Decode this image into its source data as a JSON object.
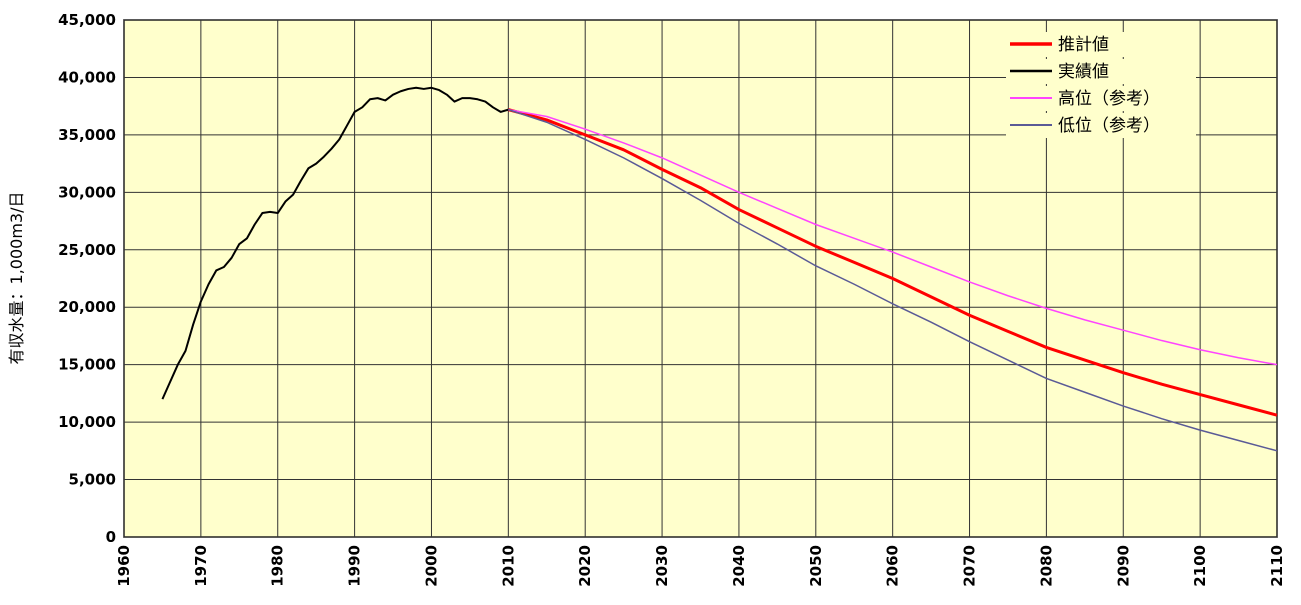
{
  "chart_data": {
    "type": "line",
    "ylabel": "有収水量：1,000m3/日",
    "xlim": [
      1960,
      2110
    ],
    "xticks": [
      1960,
      1970,
      1980,
      1990,
      2000,
      2010,
      2020,
      2030,
      2040,
      2050,
      2060,
      2070,
      2080,
      2090,
      2100,
      2110
    ],
    "ylim": [
      0,
      45000
    ],
    "yticks": [
      0,
      {
        "value": 5000,
        "label": "5,000"
      },
      {
        "value": 10000,
        "label": "10,000"
      },
      {
        "value": 15000,
        "label": "15,000"
      },
      {
        "value": 20000,
        "label": "20,000"
      },
      {
        "value": 25000,
        "label": "25,000"
      },
      {
        "value": 30000,
        "label": "30,000"
      },
      {
        "value": 35000,
        "label": "35,000"
      },
      {
        "value": 40000,
        "label": "40,000"
      },
      {
        "value": 45000,
        "label": "45,000"
      }
    ],
    "grid": true,
    "legend": "top-right",
    "background": "#ffffcc",
    "series": [
      {
        "name": "推計値",
        "color": "#ff0000",
        "width": 3,
        "x": [
          2010,
          2015,
          2020,
          2025,
          2030,
          2035,
          2040,
          2045,
          2050,
          2055,
          2060,
          2065,
          2070,
          2075,
          2080,
          2085,
          2090,
          2095,
          2100,
          2105,
          2110
        ],
        "values": [
          37200,
          36300,
          35000,
          33700,
          32000,
          30400,
          28500,
          26900,
          25300,
          23900,
          22500,
          20900,
          19300,
          17900,
          16500,
          15400,
          14300,
          13300,
          12400,
          11500,
          10600
        ]
      },
      {
        "name": "実績値",
        "color": "#000000",
        "width": 2,
        "x": [
          1965,
          1966,
          1967,
          1968,
          1969,
          1970,
          1971,
          1972,
          1973,
          1974,
          1975,
          1976,
          1977,
          1978,
          1979,
          1980,
          1981,
          1982,
          1983,
          1984,
          1985,
          1986,
          1987,
          1988,
          1989,
          1990,
          1991,
          1992,
          1993,
          1994,
          1995,
          1996,
          1997,
          1998,
          1999,
          2000,
          2001,
          2002,
          2003,
          2004,
          2005,
          2006,
          2007,
          2008,
          2009,
          2010
        ],
        "values": [
          12000,
          13500,
          15000,
          16200,
          18500,
          20500,
          22000,
          23200,
          23500,
          24300,
          25500,
          26000,
          27200,
          28200,
          28300,
          28200,
          29200,
          29800,
          31000,
          32100,
          32500,
          33100,
          33800,
          34600,
          35800,
          37000,
          37400,
          38100,
          38200,
          38000,
          38500,
          38800,
          39000,
          39100,
          39000,
          39100,
          38900,
          38500,
          37900,
          38200,
          38200,
          38100,
          37900,
          37400,
          37000,
          37200
        ]
      },
      {
        "name": "高位（参考）",
        "color": "#ff44ff",
        "width": 1.5,
        "x": [
          2010,
          2015,
          2020,
          2025,
          2030,
          2035,
          2040,
          2045,
          2050,
          2055,
          2060,
          2065,
          2070,
          2075,
          2080,
          2085,
          2090,
          2095,
          2100,
          2105,
          2110
        ],
        "values": [
          37200,
          36600,
          35500,
          34300,
          33000,
          31500,
          30000,
          28600,
          27200,
          26000,
          24800,
          23500,
          22200,
          21000,
          19900,
          18900,
          18000,
          17100,
          16300,
          15600,
          15000
        ]
      },
      {
        "name": "低位（参考）",
        "color": "#5a5a96",
        "width": 1.5,
        "x": [
          2010,
          2015,
          2020,
          2025,
          2030,
          2035,
          2040,
          2045,
          2050,
          2055,
          2060,
          2065,
          2070,
          2075,
          2080,
          2085,
          2090,
          2095,
          2100,
          2105,
          2110
        ],
        "values": [
          37200,
          36100,
          34600,
          33000,
          31200,
          29300,
          27300,
          25500,
          23600,
          22000,
          20300,
          18700,
          17000,
          15400,
          13800,
          12600,
          11400,
          10300,
          9300,
          8400,
          7500
        ]
      }
    ]
  }
}
